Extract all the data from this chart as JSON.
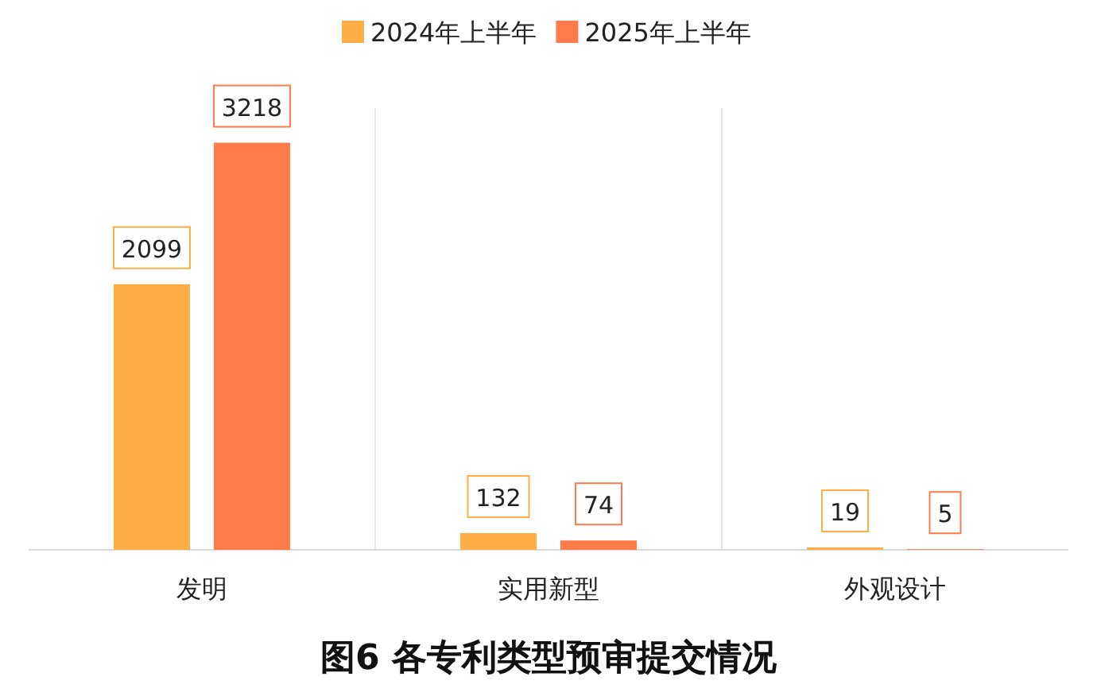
{
  "chart_data": {
    "type": "bar",
    "title": "图6 各专利类型预审提交情况",
    "categories": [
      "发明",
      "实用新型",
      "外观设计"
    ],
    "series": [
      {
        "name": "2024年上半年",
        "color": "#ffad45",
        "values": [
          2099,
          132,
          19
        ]
      },
      {
        "name": "2025年上半年",
        "color": "#ff7c4a",
        "values": [
          3218,
          74,
          5
        ]
      }
    ],
    "data_labels": true,
    "legend": "top",
    "grid": "x"
  }
}
